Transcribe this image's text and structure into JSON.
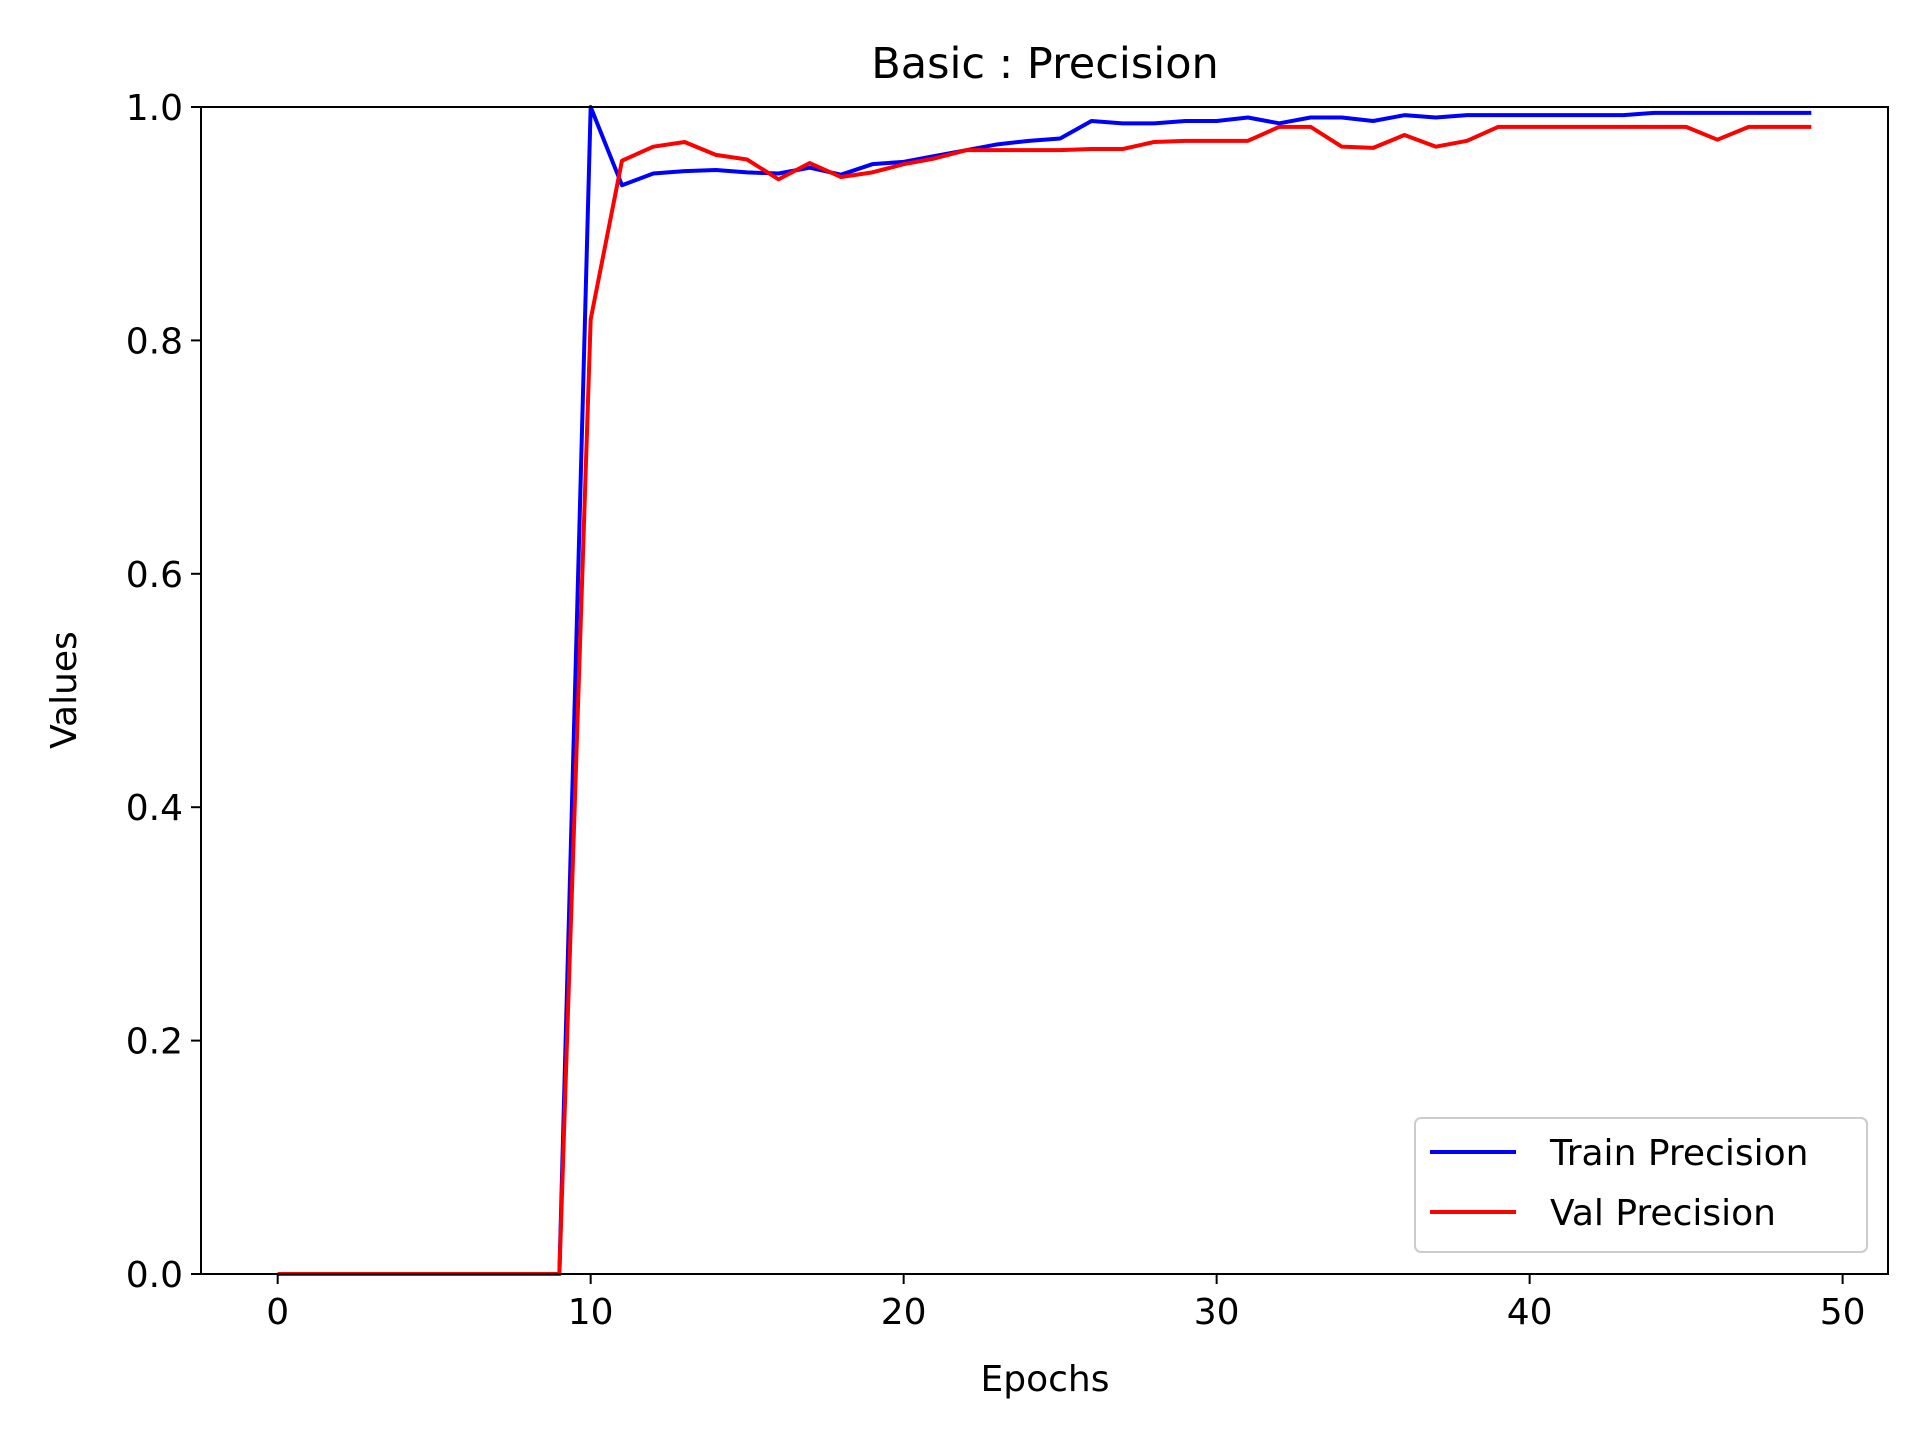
{
  "chart_data": {
    "type": "line",
    "title": "Basic : Precision",
    "xlabel": "Epochs",
    "ylabel": "Values",
    "xlim": [
      -2.45,
      51.45
    ],
    "ylim": [
      0.0,
      1.0
    ],
    "xticks": [
      0,
      10,
      20,
      30,
      40,
      50
    ],
    "yticks": [
      0.0,
      0.2,
      0.4,
      0.6,
      0.8,
      1.0
    ],
    "xtick_labels": [
      "0",
      "10",
      "20",
      "30",
      "40",
      "50"
    ],
    "ytick_labels": [
      "0.0",
      "0.2",
      "0.4",
      "0.6",
      "0.8",
      "1.0"
    ],
    "grid": false,
    "legend_position": "lower-right",
    "x": [
      0,
      1,
      2,
      3,
      4,
      5,
      6,
      7,
      8,
      9,
      10,
      11,
      12,
      13,
      14,
      15,
      16,
      17,
      18,
      19,
      20,
      21,
      22,
      23,
      24,
      25,
      26,
      27,
      28,
      29,
      30,
      31,
      32,
      33,
      34,
      35,
      36,
      37,
      38,
      39,
      40,
      41,
      42,
      43,
      44,
      45,
      46,
      47,
      48,
      49
    ],
    "series": [
      {
        "name": "Train Precision",
        "color": "#0000ff",
        "values": [
          0,
          0,
          0,
          0,
          0,
          0,
          0,
          0,
          0,
          0,
          1.0,
          0.933,
          0.943,
          0.945,
          0.946,
          0.944,
          0.943,
          0.948,
          0.942,
          0.951,
          0.953,
          0.958,
          0.963,
          0.968,
          0.971,
          0.973,
          0.988,
          0.986,
          0.986,
          0.988,
          0.988,
          0.991,
          0.986,
          0.991,
          0.991,
          0.988,
          0.993,
          0.991,
          0.993,
          0.993,
          0.993,
          0.993,
          0.993,
          0.993,
          0.995,
          0.995,
          0.995,
          0.995,
          0.995,
          0.995
        ]
      },
      {
        "name": "Val Precision",
        "color": "#ff0000",
        "values": [
          0,
          0,
          0,
          0,
          0,
          0,
          0,
          0,
          0,
          0,
          0.818,
          0.954,
          0.966,
          0.97,
          0.959,
          0.955,
          0.938,
          0.952,
          0.94,
          0.944,
          0.951,
          0.956,
          0.963,
          0.963,
          0.963,
          0.963,
          0.964,
          0.964,
          0.97,
          0.971,
          0.971,
          0.971,
          0.983,
          0.983,
          0.966,
          0.965,
          0.976,
          0.966,
          0.971,
          0.983,
          0.983,
          0.983,
          0.983,
          0.983,
          0.983,
          0.983,
          0.972,
          0.983,
          0.983,
          0.983
        ]
      }
    ]
  }
}
